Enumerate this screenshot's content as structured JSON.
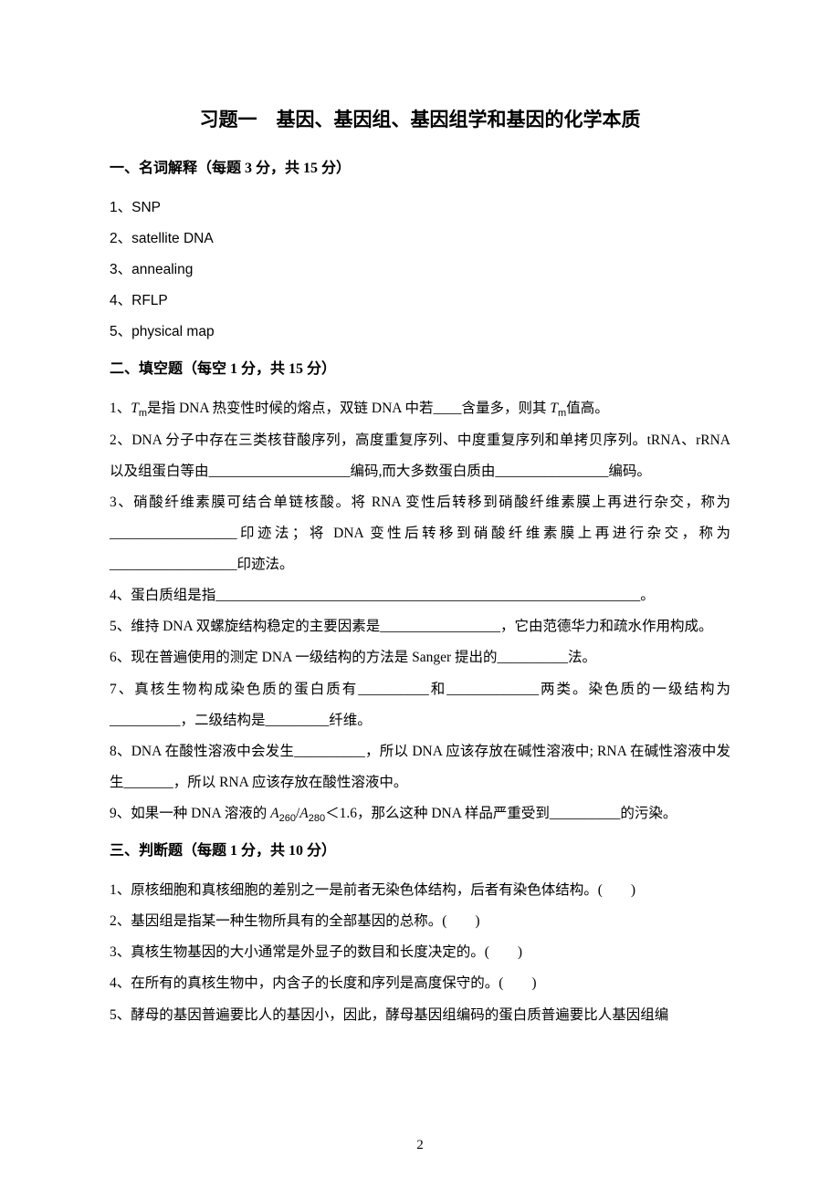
{
  "title": "习题一　基因、基因组、基因组学和基因的化学本质",
  "section1": {
    "heading": "一、名词解释（每题 3 分，共 15 分）",
    "items": [
      "1、SNP",
      "2、satellite DNA",
      "3、annealing",
      "4、RFLP",
      "5、physical map"
    ]
  },
  "section2": {
    "heading": "二、填空题（每空 1 分，共 15 分）",
    "q1_a": "1、",
    "q1_b": "是指 DNA 热变性时候的熔点，双链 DNA 中若____含量多，则其 ",
    "q1_c": "值高。",
    "q2": "2、DNA 分子中存在三类核苷酸序列，高度重复序列、中度重复序列和单拷贝序列。tRNA、rRNA 以及组蛋白等由____________________编码,而大多数蛋白质由________________编码。",
    "q3": "3、硝酸纤维素膜可结合单链核酸。将 RNA 变性后转移到硝酸纤维素膜上再进行杂交，称为__________________印迹法；将 DNA 变性后转移到硝酸纤维素膜上再进行杂交，称为__________________印迹法。",
    "q4": "4、蛋白质组是指____________________________________________________________。",
    "q5": "5、维持 DNA 双螺旋结构稳定的主要因素是_________________，它由范德华力和疏水作用构成。",
    "q6": "6、现在普遍使用的测定 DNA 一级结构的方法是 Sanger 提出的__________法。",
    "q7": "7、真核生物构成染色质的蛋白质有__________和_____________两类。染色质的一级结构为__________，二级结构是_________纤维。",
    "q8": "8、DNA 在酸性溶液中会发生__________，所以 DNA 应该存放在碱性溶液中; RNA 在碱性溶液中发生_______，所以 RNA 应该存放在酸性溶液中。",
    "q9_a": "9、如果一种 DNA 溶液的 ",
    "q9_b": "＜1.6，那么这种 DNA 样品严重受到__________的污染。"
  },
  "section3": {
    "heading": "三、判断题（每题 1 分，共 10 分）",
    "items": [
      "1、原核细胞和真核细胞的差别之一是前者无染色体结构，后者有染色体结构。(　　)",
      "2、基因组是指某一种生物所具有的全部基因的总称。(　　)",
      "3、真核生物基因的大小通常是外显子的数目和长度决定的。(　　)",
      "4、在所有的真核生物中，内含子的长度和序列是高度保守的。(　　)",
      "5、酵母的基因普遍要比人的基因小，因此，酵母基因组编码的蛋白质普遍要比人基因组编"
    ]
  },
  "pageNumber": "2"
}
